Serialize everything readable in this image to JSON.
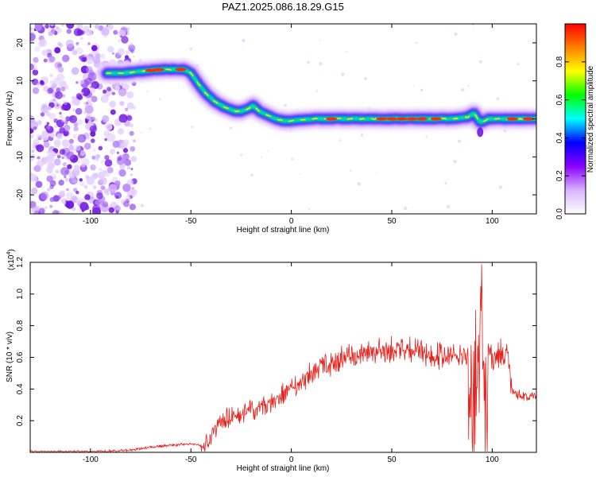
{
  "figure": {
    "title": "PAZ1.2025.086.18.29.G15"
  },
  "chart_data": [
    {
      "type": "heatmap",
      "xlabel": "Height of straight line (km)",
      "ylabel": "Frequency (Hz)",
      "xlim": [
        -130,
        122
      ],
      "ylim": [
        -25,
        25
      ],
      "xticks": [
        -100,
        -50,
        0,
        50,
        100
      ],
      "yticks": [
        -20,
        -10,
        0,
        10,
        20
      ],
      "colorbar": {
        "label": "Normalized spectral amplitude",
        "range": [
          0,
          1
        ],
        "ticks": [
          "0.0",
          "0.2",
          "0.4",
          "0.6",
          "0.8"
        ],
        "colors": [
          "#ffffff",
          "#d8b4ff",
          "#8b00ff",
          "#0000ff",
          "#00ffff",
          "#00ff00",
          "#ffff00",
          "#ff8000",
          "#ff0000"
        ]
      },
      "ridge": {
        "x": [
          -92,
          -85,
          -75,
          -65,
          -58,
          -53,
          -50,
          -46,
          -43,
          -38,
          -33,
          -28,
          -25,
          -22,
          -19,
          -16,
          -12,
          -8,
          -4,
          0,
          10,
          20,
          40,
          60,
          80,
          88,
          91,
          94,
          98,
          105,
          115,
          122
        ],
        "y": [
          12,
          12,
          12.5,
          13,
          13,
          13,
          12,
          9,
          7,
          4.5,
          3,
          2,
          2,
          2.5,
          3.5,
          2,
          1,
          0,
          -0.5,
          -0.5,
          0,
          0,
          0,
          0,
          0,
          0.5,
          1.5,
          -1,
          0,
          0,
          0,
          0
        ]
      }
    },
    {
      "type": "line",
      "xlabel": "Height of straight line (km)",
      "ylabel": "SNR (10 * v/v)",
      "scale_label": "(x10",
      "scale_exponent": "4",
      "xlim": [
        -130,
        122
      ],
      "ylim": [
        0,
        1.2
      ],
      "xticks": [
        -100,
        -50,
        0,
        50,
        100
      ],
      "yticks": [
        "0.2",
        "0.4",
        "0.6",
        "0.8",
        "1.0",
        "1.2"
      ],
      "series": [
        {
          "color": "#e8211c",
          "envelope": {
            "x": [
              -130,
              -100,
              -80,
              -70,
              -60,
              -50,
              -45,
              -40,
              -35,
              -30,
              -25,
              -20,
              -15,
              -10,
              -5,
              0,
              5,
              10,
              15,
              20,
              25,
              30,
              40,
              50,
              60,
              70,
              80,
              88,
              90,
              92,
              94,
              95,
              96,
              98,
              100,
              103,
              106,
              108,
              110,
              115,
              122
            ],
            "y": [
              0.01,
              0.01,
              0.02,
              0.04,
              0.05,
              0.06,
              0.05,
              0.15,
              0.25,
              0.28,
              0.3,
              0.32,
              0.33,
              0.36,
              0.42,
              0.46,
              0.5,
              0.56,
              0.6,
              0.62,
              0.66,
              0.68,
              0.69,
              0.7,
              0.7,
              0.68,
              0.68,
              0.68,
              0.72,
              0.85,
              1.1,
              1.2,
              0.7,
              0.68,
              0.67,
              0.68,
              0.7,
              0.68,
              0.4,
              0.38,
              0.38
            ]
          }
        }
      ]
    }
  ]
}
